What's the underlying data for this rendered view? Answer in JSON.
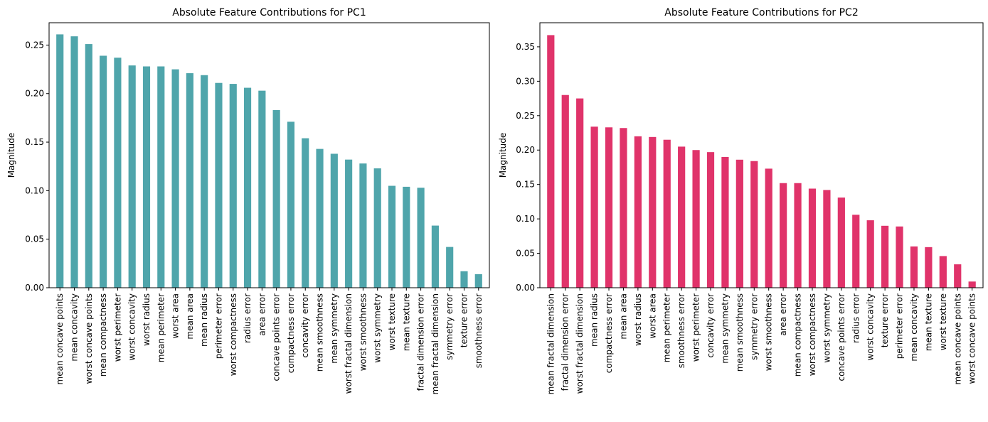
{
  "colors": {
    "pc1": "#4fa5ab",
    "pc2": "#e0336a"
  },
  "chart_data": [
    {
      "type": "bar",
      "title": "Absolute Feature Contributions for PC1",
      "xlabel": "",
      "ylabel": "Magnitude",
      "ylim": [
        0,
        0.273
      ],
      "yticks": [
        0.0,
        0.05,
        0.1,
        0.15,
        0.2,
        0.25
      ],
      "ytick_labels": [
        "0.00",
        "0.05",
        "0.10",
        "0.15",
        "0.20",
        "0.25"
      ],
      "grid": false,
      "categories": [
        "mean concave points",
        "mean concavity",
        "worst concave points",
        "mean compactness",
        "worst perimeter",
        "worst concavity",
        "worst radius",
        "mean perimeter",
        "worst area",
        "mean area",
        "mean radius",
        "perimeter error",
        "worst compactness",
        "radius error",
        "area error",
        "concave points error",
        "compactness error",
        "concavity error",
        "mean smoothness",
        "mean symmetry",
        "worst fractal dimension",
        "worst smoothness",
        "worst symmetry",
        "worst texture",
        "mean texture",
        "fractal dimension error",
        "mean fractal dimension",
        "symmetry error",
        "texture error",
        "smoothness error"
      ],
      "values": [
        0.261,
        0.259,
        0.251,
        0.239,
        0.237,
        0.229,
        0.228,
        0.228,
        0.225,
        0.221,
        0.219,
        0.211,
        0.21,
        0.206,
        0.203,
        0.183,
        0.171,
        0.154,
        0.143,
        0.138,
        0.132,
        0.128,
        0.123,
        0.105,
        0.104,
        0.103,
        0.064,
        0.042,
        0.017,
        0.014
      ]
    },
    {
      "type": "bar",
      "title": "Absolute Feature Contributions for PC2",
      "xlabel": "",
      "ylabel": "Magnitude",
      "ylim": [
        0,
        0.385
      ],
      "yticks": [
        0.0,
        0.05,
        0.1,
        0.15,
        0.2,
        0.25,
        0.3,
        0.35
      ],
      "ytick_labels": [
        "0.00",
        "0.05",
        "0.10",
        "0.15",
        "0.20",
        "0.25",
        "0.30",
        "0.35"
      ],
      "grid": false,
      "categories": [
        "mean fractal dimension",
        "fractal dimension error",
        "worst fractal dimension",
        "mean radius",
        "compactness error",
        "mean area",
        "worst radius",
        "worst area",
        "mean perimeter",
        "smoothness error",
        "worst perimeter",
        "concavity error",
        "mean symmetry",
        "mean smoothness",
        "symmetry error",
        "worst smoothness",
        "area error",
        "mean compactness",
        "worst compactness",
        "worst symmetry",
        "concave points error",
        "radius error",
        "worst concavity",
        "texture error",
        "perimeter error",
        "mean concavity",
        "mean texture",
        "worst texture",
        "mean concave points",
        "worst concave points"
      ],
      "values": [
        0.367,
        0.28,
        0.275,
        0.234,
        0.233,
        0.232,
        0.22,
        0.219,
        0.215,
        0.205,
        0.2,
        0.197,
        0.19,
        0.186,
        0.184,
        0.173,
        0.152,
        0.152,
        0.144,
        0.142,
        0.131,
        0.106,
        0.098,
        0.09,
        0.089,
        0.06,
        0.059,
        0.046,
        0.034,
        0.009
      ]
    }
  ]
}
